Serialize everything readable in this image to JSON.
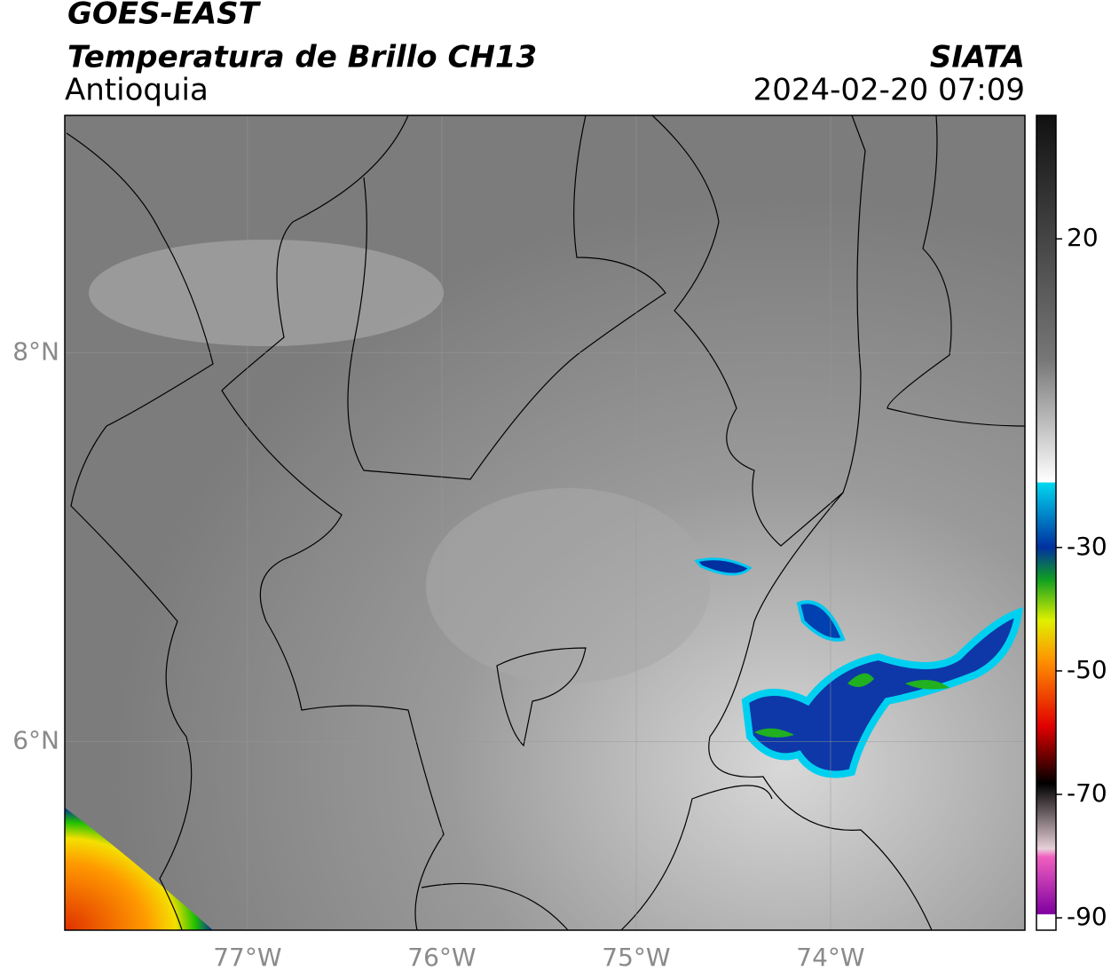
{
  "header": {
    "title": "GOES-EAST",
    "subtitle": "Temperatura de Brillo CH13",
    "region": "Antioquia",
    "source": "SIATA",
    "datetime": "2024-02-20 07:09"
  },
  "map": {
    "xlim": [
      -77.94,
      -73.0
    ],
    "ylim": [
      5.03,
      9.22
    ],
    "lat_ticks": [
      {
        "value": 8,
        "label": "8°N"
      },
      {
        "value": 6,
        "label": "6°N"
      }
    ],
    "lon_ticks": [
      {
        "value": -77,
        "label": "77°W"
      },
      {
        "value": -76,
        "label": "76°W"
      },
      {
        "value": -75,
        "label": "75°W"
      },
      {
        "value": -74,
        "label": "74°W"
      }
    ]
  },
  "colorbar": {
    "lim": [
      -92,
      40
    ],
    "ticks": [
      20,
      -30,
      -50,
      -70,
      -90
    ]
  }
}
